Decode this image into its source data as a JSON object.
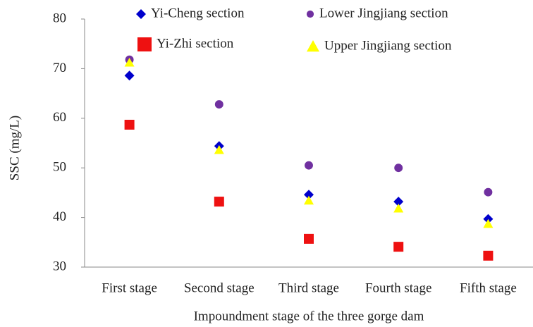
{
  "chart_data": {
    "type": "scatter",
    "x_label": "Impoundment stage of the three gorge dam",
    "y_label": "SSC (mg/L)",
    "categories": [
      "First stage",
      "Second stage",
      "Third stage",
      "Fourth stage",
      "Fifth stage"
    ],
    "series": [
      {
        "name": "Yi-Cheng section",
        "color": "#0000cc",
        "marker": "diamond",
        "values": [
          68.6,
          54.4,
          44.6,
          43.2,
          39.7
        ]
      },
      {
        "name": "Lower Jingjiang section",
        "color": "#7030a0",
        "marker": "circle",
        "values": [
          71.8,
          62.8,
          50.5,
          50.0,
          45.1
        ]
      },
      {
        "name": "Yi-Zhi section",
        "color": "#ee1111",
        "marker": "square",
        "values": [
          58.7,
          43.2,
          35.7,
          34.1,
          32.3
        ]
      },
      {
        "name": "Upper Jingjiang section",
        "color": "#ffff00",
        "marker": "triangle",
        "values": [
          71.2,
          53.6,
          43.4,
          41.8,
          38.7
        ]
      }
    ],
    "ylim": [
      30,
      80
    ],
    "yticks": [
      30,
      40,
      50,
      60,
      70,
      80
    ],
    "grid": false,
    "legend": "top"
  }
}
